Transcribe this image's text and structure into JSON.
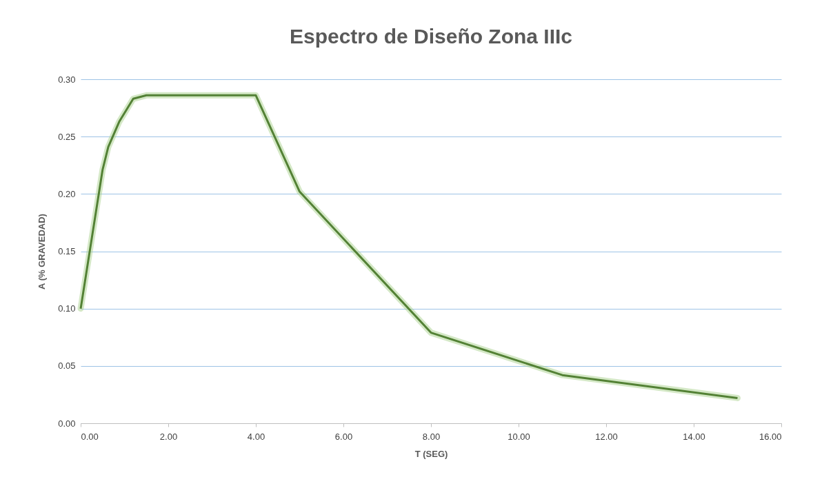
{
  "chart_data": {
    "type": "line",
    "title": "Espectro de Diseño Zona IIIc",
    "xlabel": "T (SEG)",
    "ylabel": "A (% GRAVEDAD)",
    "x": [
      0,
      0.5,
      0.63,
      0.88,
      1.2,
      1.5,
      4.0,
      5.0,
      8.0,
      11.0,
      15.0
    ],
    "series": [
      {
        "color": "#538135",
        "values": [
          0.1,
          0.221,
          0.241,
          0.263,
          0.283,
          0.286,
          0.286,
          0.202,
          0.079,
          0.042,
          0.022
        ]
      }
    ],
    "xlim": [
      0,
      16
    ],
    "xticks": [
      {
        "value": 0,
        "label": "0.00"
      },
      {
        "value": 2,
        "label": "2.00"
      },
      {
        "value": 4,
        "label": "4.00"
      },
      {
        "value": 6,
        "label": "6.00"
      },
      {
        "value": 8,
        "label": "8.00"
      },
      {
        "value": 10,
        "label": "10.00"
      },
      {
        "value": 12,
        "label": "12.00"
      },
      {
        "value": 14,
        "label": "14.00"
      },
      {
        "value": 16,
        "label": "16.00"
      }
    ],
    "ylim": [
      0,
      0.3
    ],
    "yticks": [
      {
        "value": 0,
        "label": "0.00"
      },
      {
        "value": 0.05,
        "label": "0.05"
      },
      {
        "value": 0.1,
        "label": "0.10"
      },
      {
        "value": 0.15,
        "label": "0.15"
      },
      {
        "value": 0.2,
        "label": "0.20"
      },
      {
        "value": 0.25,
        "label": "0.25"
      },
      {
        "value": 0.3,
        "label": "0.30"
      }
    ],
    "grid": "y",
    "marker": "none",
    "line_style": "solid"
  }
}
